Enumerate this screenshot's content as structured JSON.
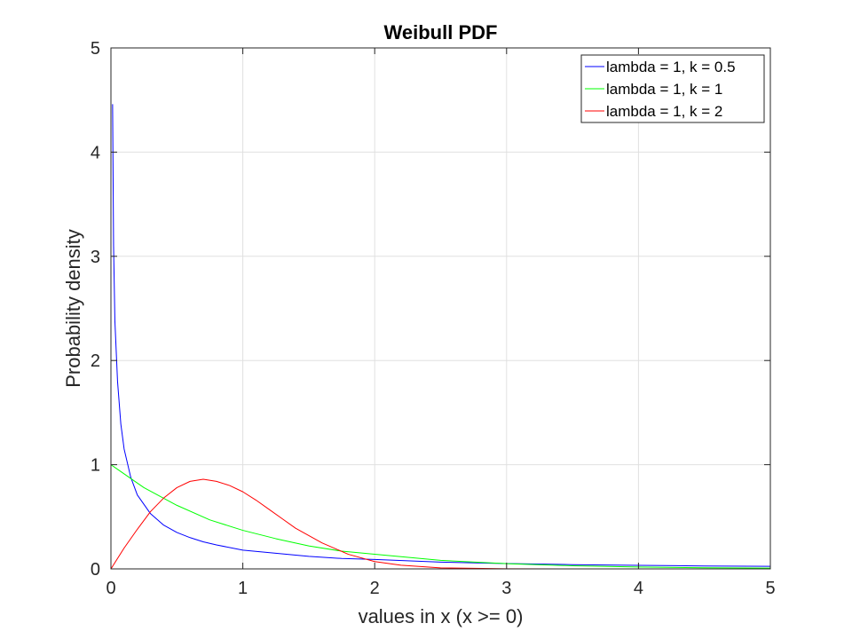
{
  "chart_data": {
    "type": "line",
    "title": "Weibull PDF",
    "xlabel": "values in x (x >= 0)",
    "ylabel": "Probability density",
    "xlim": [
      0,
      5
    ],
    "ylim": [
      0,
      5
    ],
    "xticks": [
      "0",
      "1",
      "2",
      "3",
      "4",
      "5"
    ],
    "yticks": [
      "0",
      "1",
      "2",
      "3",
      "4",
      "5"
    ],
    "grid": true,
    "legend_position": "top-right",
    "x_range": [
      0,
      5
    ],
    "series": [
      {
        "name": "lambda = 1, k = 0.5",
        "color": "#0000ff",
        "x": [
          0.0125,
          0.02,
          0.03,
          0.05,
          0.075,
          0.1,
          0.15,
          0.2,
          0.3,
          0.4,
          0.5,
          0.6,
          0.7,
          0.8,
          1.0,
          1.25,
          1.5,
          1.75,
          2.0,
          2.5,
          3.0,
          3.5,
          4.0,
          4.5,
          5.0
        ],
        "values": [
          4.46,
          3.1,
          2.38,
          1.8,
          1.39,
          1.15,
          0.88,
          0.71,
          0.53,
          0.42,
          0.35,
          0.3,
          0.26,
          0.23,
          0.18,
          0.15,
          0.12,
          0.1,
          0.09,
          0.065,
          0.051,
          0.041,
          0.034,
          0.028,
          0.024
        ]
      },
      {
        "name": "lambda = 1, k = 1",
        "color": "#00ff00",
        "x": [
          0,
          0.25,
          0.5,
          0.75,
          1.0,
          1.25,
          1.5,
          1.75,
          2.0,
          2.5,
          3.0,
          3.5,
          4.0,
          4.5,
          5.0
        ],
        "values": [
          1.0,
          0.78,
          0.61,
          0.47,
          0.37,
          0.29,
          0.22,
          0.17,
          0.14,
          0.082,
          0.05,
          0.03,
          0.018,
          0.011,
          0.007
        ]
      },
      {
        "name": "lambda = 1, k = 2",
        "color": "#ff0000",
        "x": [
          0,
          0.1,
          0.2,
          0.3,
          0.4,
          0.5,
          0.6,
          0.7,
          0.8,
          0.9,
          1.0,
          1.1,
          1.2,
          1.3,
          1.4,
          1.5,
          1.6,
          1.8,
          2.0,
          2.2,
          2.5,
          3.0,
          3.5,
          4.0,
          5.0
        ],
        "values": [
          0,
          0.2,
          0.38,
          0.55,
          0.68,
          0.78,
          0.84,
          0.86,
          0.84,
          0.8,
          0.74,
          0.66,
          0.57,
          0.48,
          0.39,
          0.32,
          0.25,
          0.14,
          0.07,
          0.035,
          0.01,
          0.001,
          0.0,
          0.0,
          0.0
        ]
      }
    ]
  }
}
